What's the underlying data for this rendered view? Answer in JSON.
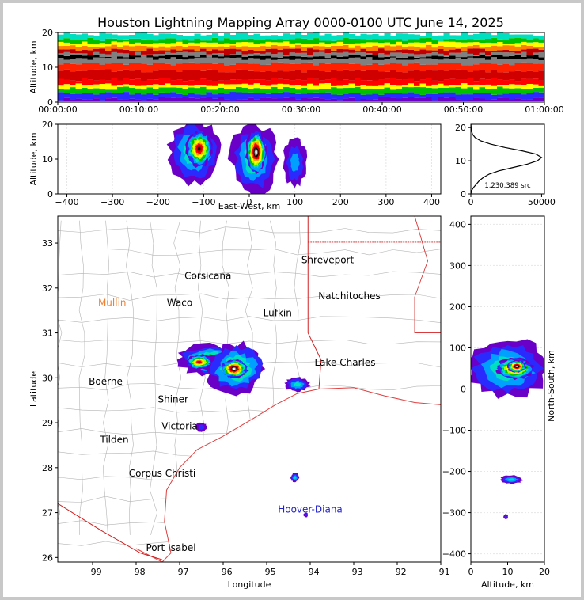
{
  "title": "Houston Lightning Mapping Array 0000-0100 UTC June 14, 2025",
  "colors": {
    "background": "#ffffff",
    "frame": "#c8c8c8",
    "county_lines": "#b4b4b4",
    "state_lines": "#d22020",
    "coast": "#e04040",
    "city_label": "#000000",
    "orange_label": "#f08030",
    "blue_label": "#2020d0",
    "colormap": [
      "#6a00c8",
      "#2a2aff",
      "#00a0ff",
      "#00e0c0",
      "#00c000",
      "#a0ff00",
      "#ffff00",
      "#ffa000",
      "#ff0000",
      "#c00000",
      "#000000",
      "#808080",
      "#ffffff"
    ]
  },
  "chart_data": [
    {
      "id": "time-height",
      "type": "heatmap",
      "ylabel": "Altitude, km",
      "ylim": [
        0,
        20
      ],
      "yticks": [
        0,
        10,
        20
      ],
      "xticks": [
        "00:00:00",
        "00:10:00",
        "00:20:00",
        "00:30:00",
        "00:40:00",
        "00:50:00",
        "01:00:00"
      ],
      "xlim": [
        "00:00:00",
        "01:00:00"
      ],
      "altitude_profile_levels_km": [
        {
          "alt": 1,
          "color": "#6a00c8"
        },
        {
          "alt": 2.5,
          "color": "#2a2aff"
        },
        {
          "alt": 4,
          "color": "#00c000"
        },
        {
          "alt": 5,
          "color": "#ffff00"
        },
        {
          "alt": 6.5,
          "color": "#ff0000"
        },
        {
          "alt": 9,
          "color": "#d00000"
        },
        {
          "alt": 11,
          "color": "#ff2000"
        },
        {
          "alt": 12.5,
          "color": "#808080"
        },
        {
          "alt": 13.2,
          "color": "#000000"
        },
        {
          "alt": 14,
          "color": "#808080"
        },
        {
          "alt": 15,
          "color": "#c00000"
        },
        {
          "alt": 16,
          "color": "#ff8000"
        },
        {
          "alt": 17,
          "color": "#ffff00"
        },
        {
          "alt": 18,
          "color": "#00c000"
        },
        {
          "alt": 19.5,
          "color": "#00e0c0"
        }
      ]
    },
    {
      "id": "east-west",
      "type": "heatmap",
      "xlabel": "East-West, km",
      "ylabel": "Altitude, km",
      "xlim": [
        -420,
        420
      ],
      "ylim": [
        0,
        20
      ],
      "xticks": [
        -400,
        -300,
        -200,
        -100,
        0,
        100,
        200,
        300,
        400
      ],
      "yticks": [
        0,
        10,
        20
      ],
      "cells": [
        {
          "x": -120,
          "alt": 12,
          "rx": 55,
          "ry": 9,
          "level": 4
        },
        {
          "x": 10,
          "alt": 10,
          "rx": 50,
          "ry": 10,
          "level": 4
        },
        {
          "x": 100,
          "alt": 9,
          "rx": 25,
          "ry": 7,
          "level": 2
        },
        {
          "x": -110,
          "alt": 13,
          "rx": 28,
          "ry": 5,
          "level": 10
        },
        {
          "x": 15,
          "alt": 12,
          "rx": 22,
          "ry": 6,
          "level": 12
        }
      ]
    },
    {
      "id": "altitude-histogram",
      "type": "line",
      "xlim": [
        0,
        52000
      ],
      "ylim": [
        0,
        21
      ],
      "xticks": [
        0,
        50000
      ],
      "yticks": [
        0,
        10,
        20
      ],
      "annotation": "1,230,389 src",
      "x": [
        0,
        500,
        2000,
        4000,
        6000,
        9000,
        13000,
        20000,
        30000,
        40000,
        47000,
        50000,
        46000,
        36000,
        24000,
        14000,
        7000,
        3000,
        1200,
        500,
        200,
        50
      ],
      "y": [
        0,
        1,
        2,
        3,
        4,
        5,
        6,
        7,
        8,
        9,
        10,
        11,
        12,
        13,
        14,
        15,
        16,
        17,
        18,
        19,
        20,
        21
      ]
    },
    {
      "id": "plan-view",
      "type": "scatter",
      "xlabel": "Longitude",
      "ylabel": "Latitude",
      "xlim": [
        -99.8,
        -91
      ],
      "ylim": [
        25.9,
        33.6
      ],
      "xticks": [
        -99,
        -98,
        -97,
        -96,
        -95,
        -94,
        -93,
        -92,
        -91
      ],
      "yticks": [
        26,
        27,
        28,
        29,
        30,
        31,
        32,
        33
      ],
      "cities": [
        {
          "name": "Shreveport",
          "lon": -93.6,
          "lat": 32.55,
          "style": "black"
        },
        {
          "name": "Corsicana",
          "lon": -96.35,
          "lat": 32.2,
          "style": "black"
        },
        {
          "name": "Natchitoches",
          "lon": -93.1,
          "lat": 31.75,
          "style": "black"
        },
        {
          "name": "Mullin",
          "lon": -98.55,
          "lat": 31.6,
          "style": "orange"
        },
        {
          "name": "Waco",
          "lon": -97.0,
          "lat": 31.6,
          "style": "black"
        },
        {
          "name": "Lufkin",
          "lon": -94.75,
          "lat": 31.37,
          "style": "black"
        },
        {
          "name": "Lake Charles",
          "lon": -93.2,
          "lat": 30.27,
          "style": "black"
        },
        {
          "name": "Boerne",
          "lon": -98.7,
          "lat": 29.85,
          "style": "black"
        },
        {
          "name": "Shiner",
          "lon": -97.15,
          "lat": 29.45,
          "style": "black"
        },
        {
          "name": "Victoria",
          "lon": -97.0,
          "lat": 28.85,
          "style": "black"
        },
        {
          "name": "Tilden",
          "lon": -98.5,
          "lat": 28.55,
          "style": "black"
        },
        {
          "name": "Corpus Christi",
          "lon": -97.4,
          "lat": 27.8,
          "style": "black"
        },
        {
          "name": "Hoover-Diana",
          "lon": -94.0,
          "lat": 27.0,
          "style": "blue"
        },
        {
          "name": "Port Isabel",
          "lon": -97.2,
          "lat": 26.15,
          "style": "black"
        }
      ],
      "storms": [
        {
          "lon": -96.3,
          "lat": 30.4,
          "rlon": 0.75,
          "rlat": 0.33,
          "level": 5
        },
        {
          "lon": -95.7,
          "lat": 30.2,
          "rlon": 0.65,
          "rlat": 0.55,
          "level": 5
        },
        {
          "lon": -96.55,
          "lat": 30.35,
          "rlon": 0.3,
          "rlat": 0.16,
          "level": 9
        },
        {
          "lon": -95.75,
          "lat": 30.2,
          "rlon": 0.3,
          "rlat": 0.2,
          "level": 12
        },
        {
          "lon": -94.3,
          "lat": 29.85,
          "rlon": 0.28,
          "rlat": 0.16,
          "level": 3
        },
        {
          "lon": -94.35,
          "lat": 27.78,
          "rlon": 0.1,
          "rlat": 0.1,
          "level": 3
        },
        {
          "lon": -94.1,
          "lat": 26.95,
          "rlon": 0.05,
          "rlat": 0.05,
          "level": 1
        },
        {
          "lon": -96.5,
          "lat": 28.9,
          "rlon": 0.12,
          "rlat": 0.1,
          "level": 1
        }
      ]
    },
    {
      "id": "north-south",
      "type": "heatmap",
      "xlabel": "Altitude, km",
      "ylabel": "North-South, km",
      "xlim": [
        0,
        20
      ],
      "ylim": [
        -420,
        420
      ],
      "xticks": [
        0,
        10,
        20
      ],
      "yticks": [
        -400,
        -300,
        -200,
        -100,
        0,
        100,
        200,
        300,
        400
      ],
      "cells": [
        {
          "alt": 10,
          "y": 50,
          "rx": 11,
          "ry": 70,
          "level": 4
        },
        {
          "alt": 12,
          "y": 50,
          "rx": 5,
          "ry": 25,
          "level": 10
        },
        {
          "alt": 12.5,
          "y": 55,
          "rx": 2.5,
          "ry": 15,
          "level": 12
        },
        {
          "alt": 11,
          "y": -220,
          "rx": 3,
          "ry": 10,
          "level": 3
        },
        {
          "alt": 9.5,
          "y": -310,
          "rx": 0.6,
          "ry": 6,
          "level": 1
        }
      ]
    }
  ]
}
